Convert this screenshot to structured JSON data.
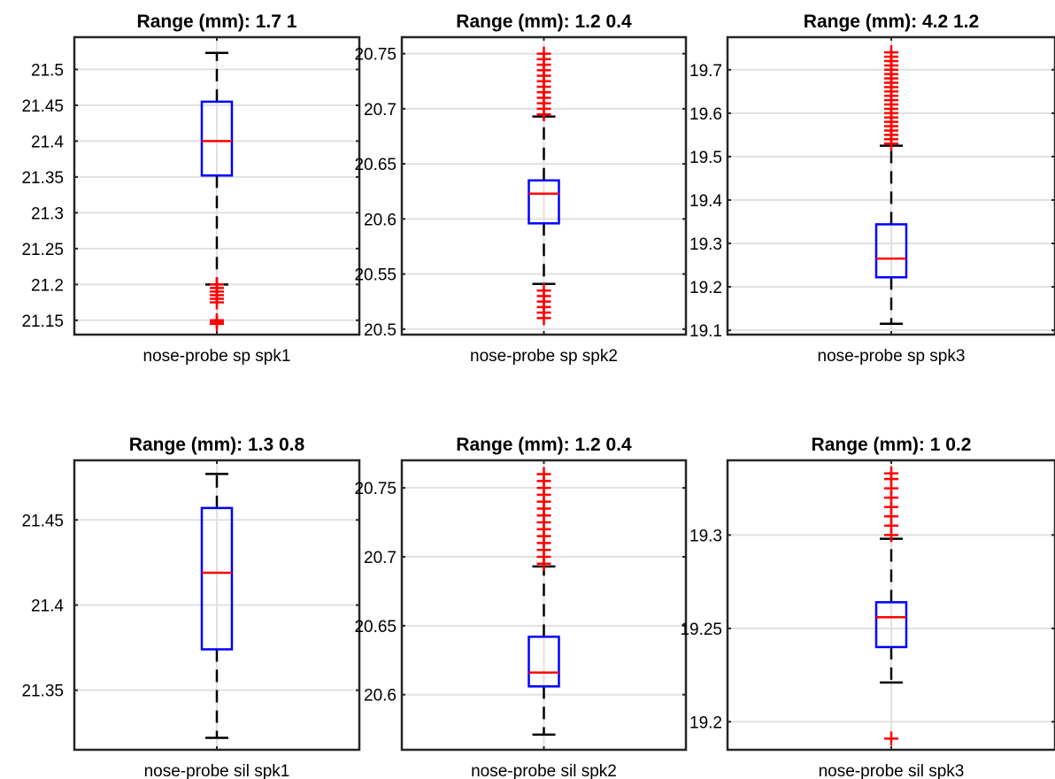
{
  "chart_data": [
    {
      "type": "box",
      "title": "Range (mm): 1.7 1",
      "categories": [
        "nose-probe sp spk1"
      ],
      "ylim": [
        21.13,
        21.545
      ],
      "yticks": [
        21.15,
        21.2,
        21.25,
        21.3,
        21.35,
        21.4,
        21.45,
        21.5
      ],
      "ytick_labels": [
        "21.15",
        "21.2",
        "21.25",
        "21.3",
        "21.35",
        "21.4",
        "21.45",
        "21.5"
      ],
      "box": {
        "whisker_low": 21.2,
        "q1": 21.352,
        "median": 21.4,
        "q3": 21.455,
        "whisker_high": 21.523
      },
      "outliers": [
        21.2,
        21.195,
        21.19,
        21.185,
        21.18,
        21.175,
        21.15,
        21.148,
        21.145
      ]
    },
    {
      "type": "box",
      "title": "Range (mm): 1.2 0.4",
      "categories": [
        "nose-probe sp spk2"
      ],
      "ylim": [
        20.495,
        20.765
      ],
      "yticks": [
        20.5,
        20.55,
        20.6,
        20.65,
        20.7,
        20.75
      ],
      "ytick_labels": [
        "20.5",
        "20.55",
        "20.6",
        "20.65",
        "20.7",
        "20.75"
      ],
      "box": {
        "whisker_low": 20.541,
        "q1": 20.596,
        "median": 20.623,
        "q3": 20.635,
        "whisker_high": 20.693
      },
      "outliers": [
        20.75,
        20.745,
        20.74,
        20.735,
        20.73,
        20.725,
        20.72,
        20.715,
        20.71,
        20.705,
        20.7,
        20.695,
        20.535,
        20.53,
        20.525,
        20.52,
        20.515,
        20.51
      ]
    },
    {
      "type": "box",
      "title": "Range (mm): 4.2 1.2",
      "categories": [
        "nose-probe sp spk3"
      ],
      "ylim": [
        19.09,
        19.775
      ],
      "yticks": [
        19.1,
        19.2,
        19.3,
        19.4,
        19.5,
        19.6,
        19.7
      ],
      "ytick_labels": [
        "19.1",
        "19.2",
        "19.3",
        "19.4",
        "19.5",
        "19.6",
        "19.7"
      ],
      "box": {
        "whisker_low": 19.115,
        "q1": 19.222,
        "median": 19.265,
        "q3": 19.344,
        "whisker_high": 19.525
      },
      "outliers": [
        19.74,
        19.73,
        19.72,
        19.71,
        19.7,
        19.69,
        19.68,
        19.67,
        19.66,
        19.65,
        19.64,
        19.63,
        19.62,
        19.61,
        19.6,
        19.59,
        19.58,
        19.57,
        19.56,
        19.55,
        19.54,
        19.53
      ]
    },
    {
      "type": "box",
      "title": "Range (mm): 1.3 0.8",
      "categories": [
        "nose-probe sil spk1"
      ],
      "ylim": [
        21.315,
        21.485
      ],
      "yticks": [
        21.35,
        21.4,
        21.45
      ],
      "ytick_labels": [
        "21.35",
        "21.4",
        "21.45"
      ],
      "box": {
        "whisker_low": 21.322,
        "q1": 21.374,
        "median": 21.419,
        "q3": 21.457,
        "whisker_high": 21.477
      },
      "outliers": []
    },
    {
      "type": "box",
      "title": "Range (mm): 1.2 0.4",
      "categories": [
        "nose-probe sil spk2"
      ],
      "ylim": [
        20.56,
        20.77
      ],
      "yticks": [
        20.6,
        20.65,
        20.7,
        20.75
      ],
      "ytick_labels": [
        "20.6",
        "20.65",
        "20.7",
        "20.75"
      ],
      "box": {
        "whisker_low": 20.571,
        "q1": 20.606,
        "median": 20.616,
        "q3": 20.642,
        "whisker_high": 20.693
      },
      "outliers": [
        20.76,
        20.755,
        20.75,
        20.745,
        20.74,
        20.735,
        20.73,
        20.725,
        20.72,
        20.715,
        20.71,
        20.705,
        20.7,
        20.695
      ]
    },
    {
      "type": "box",
      "title": "Range (mm): 1 0.2",
      "categories": [
        "nose-probe sil spk3"
      ],
      "ylim": [
        19.185,
        19.34
      ],
      "yticks": [
        19.2,
        19.25,
        19.3
      ],
      "ytick_labels": [
        "19.2",
        "19.25",
        "19.3"
      ],
      "box": {
        "whisker_low": 19.221,
        "q1": 19.24,
        "median": 19.256,
        "q3": 19.264,
        "whisker_high": 19.298
      },
      "outliers": [
        19.333,
        19.33,
        19.325,
        19.32,
        19.315,
        19.31,
        19.305,
        19.3,
        19.191
      ]
    }
  ]
}
